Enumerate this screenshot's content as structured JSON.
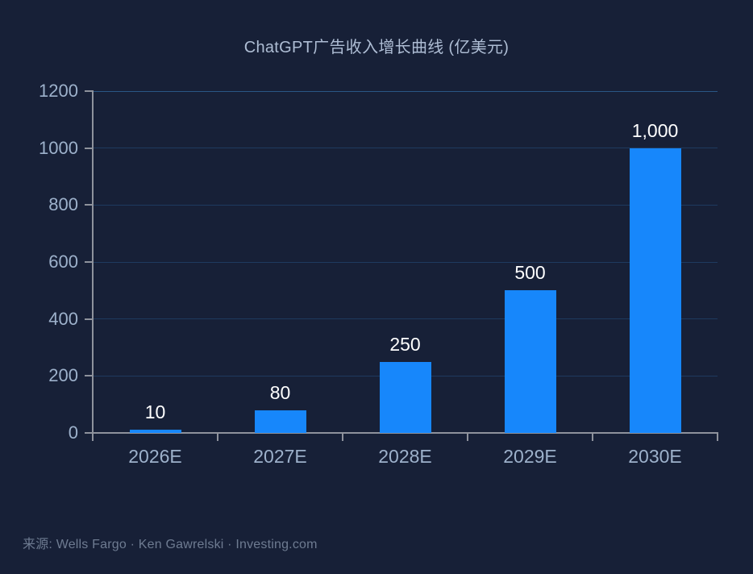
{
  "title": "ChatGPT广告收入增长曲线 (亿美元)",
  "source_line": "来源: Wells Fargo  ·  Ken Gawrelski  ·  Investing.com",
  "colors": {
    "background": "#172037",
    "bar": "#1787fb",
    "gridline": "#1e3a5f",
    "gridline_top": "#2a5684",
    "axis": "#8e929c",
    "tick_label": "#9db1cb",
    "value_label": "#ffffff",
    "title": "#aebdd4",
    "source": "#6e7b91"
  },
  "chart_data": {
    "type": "bar",
    "title": "ChatGPT广告收入增长曲线 (亿美元)",
    "categories": [
      "2026E",
      "2027E",
      "2028E",
      "2029E",
      "2030E"
    ],
    "values": [
      10,
      80,
      250,
      500,
      1000
    ],
    "value_labels": [
      "10",
      "80",
      "250",
      "500",
      "1,000"
    ],
    "xlabel": "",
    "ylabel": "",
    "ylim": [
      0,
      1200
    ],
    "yticks": [
      0,
      200,
      400,
      600,
      800,
      1000,
      1200
    ],
    "grid": true,
    "legend": "none",
    "bar_color": "#1787fb",
    "source": "来源: Wells Fargo · Ken Gawrelski · Investing.com"
  }
}
